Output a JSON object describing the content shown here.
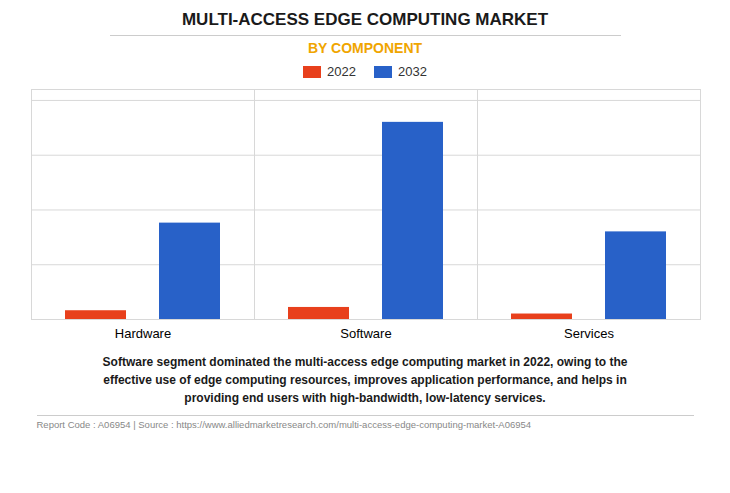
{
  "chart_data": {
    "type": "bar",
    "title": "MULTI-ACCESS EDGE COMPUTING MARKET",
    "subtitle": "BY COMPONENT",
    "categories": [
      "Hardware",
      "Software",
      "Services"
    ],
    "series": [
      {
        "name": "2022",
        "color": "#e8401c",
        "values": [
          0.04,
          0.055,
          0.025
        ]
      },
      {
        "name": "2032",
        "color": "#2861c8",
        "values": [
          0.44,
          0.9,
          0.4
        ]
      }
    ],
    "ylim": [
      0,
      1.05
    ],
    "yticks": [
      0,
      0.25,
      0.5,
      0.75,
      1.0
    ],
    "grid": true,
    "legend": "top",
    "tick_labels": "x",
    "annotations": [
      "Software segment dominated the multi-access edge computing market in 2022, owing to the\neffective use of edge computing resources, improves application performance, and helps in\nproviding end users with high-bandwidth, low-latency services.",
      "Report Code : A06954  |  Source : https://www.alliedmarketresearch.com/multi-access-edge-computing-market-A06954"
    ]
  }
}
